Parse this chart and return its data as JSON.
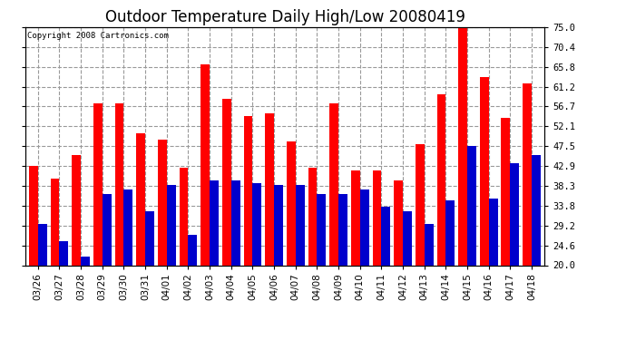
{
  "title": "Outdoor Temperature Daily High/Low 20080419",
  "copyright": "Copyright 2008 Cartronics.com",
  "dates": [
    "03/26",
    "03/27",
    "03/28",
    "03/29",
    "03/30",
    "03/31",
    "04/01",
    "04/02",
    "04/03",
    "04/04",
    "04/05",
    "04/06",
    "04/07",
    "04/08",
    "04/09",
    "04/10",
    "04/11",
    "04/12",
    "04/13",
    "04/14",
    "04/15",
    "04/16",
    "04/17",
    "04/18"
  ],
  "highs": [
    43.0,
    40.0,
    45.5,
    57.5,
    57.5,
    50.5,
    49.0,
    42.5,
    66.5,
    58.5,
    54.5,
    55.0,
    48.5,
    42.5,
    57.5,
    42.0,
    42.0,
    39.5,
    48.0,
    59.5,
    76.0,
    63.5,
    54.0,
    62.0
  ],
  "lows": [
    29.5,
    25.5,
    22.0,
    36.5,
    37.5,
    32.5,
    38.5,
    27.0,
    39.5,
    39.5,
    39.0,
    38.5,
    38.5,
    36.5,
    36.5,
    37.5,
    33.5,
    32.5,
    29.5,
    35.0,
    47.5,
    35.5,
    43.5,
    45.5
  ],
  "high_color": "#FF0000",
  "low_color": "#0000CC",
  "bar_width": 0.42,
  "ylim_min": 20.0,
  "ylim_max": 75.0,
  "yticks": [
    20.0,
    24.6,
    29.2,
    33.8,
    38.3,
    42.9,
    47.5,
    52.1,
    56.7,
    61.2,
    65.8,
    70.4,
    75.0
  ],
  "bg_color": "#FFFFFF",
  "grid_color": "#999999",
  "title_fontsize": 12,
  "label_fontsize": 7.5,
  "copyright_fontsize": 6.5
}
